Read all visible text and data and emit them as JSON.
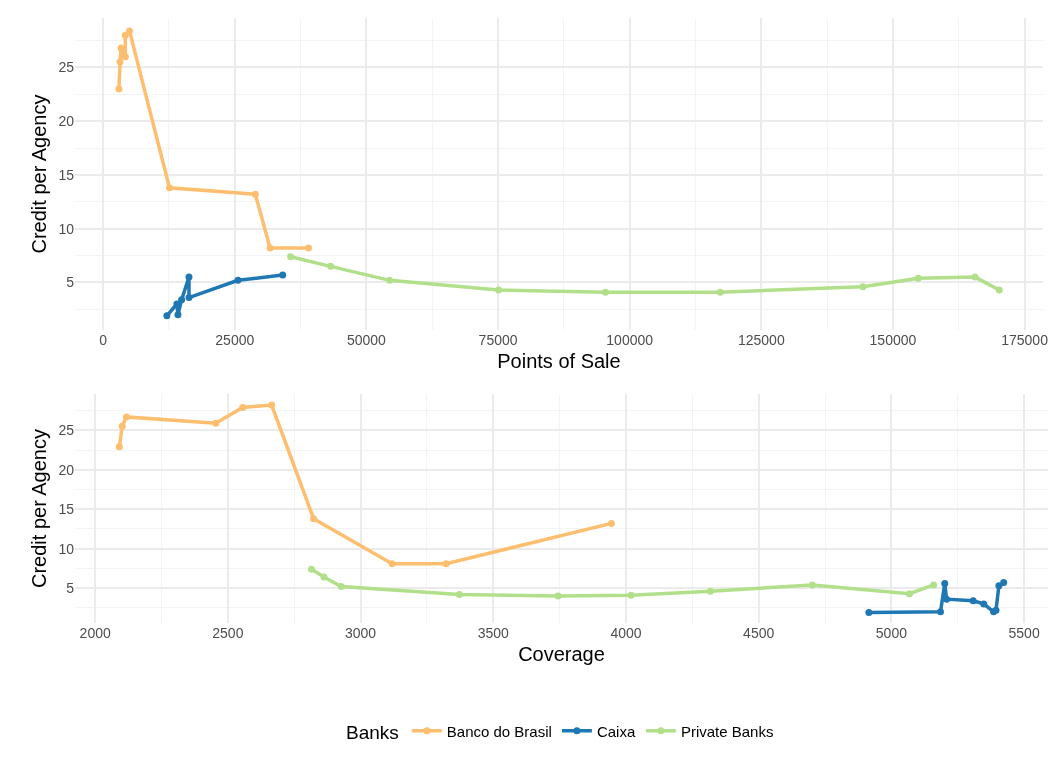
{
  "chart_data": [
    {
      "type": "line",
      "xlabel": "Points of Sale",
      "ylabel": "Credit per Agency",
      "xlim": [
        -5350,
        178500
      ],
      "ylim": [
        0.58,
        29.6
      ],
      "xticks": [
        0,
        25000,
        50000,
        75000,
        100000,
        125000,
        150000,
        175000
      ],
      "yticks": [
        5,
        10,
        15,
        20,
        25
      ],
      "grid": true,
      "legend": false,
      "marker": "circle",
      "line_style": "solid",
      "series": [
        {
          "color": "#fdbf6f",
          "x": [
            3000,
            3200,
            3400,
            4200,
            4200,
            5000,
            12600,
            28900,
            31700,
            39000
          ],
          "values": [
            23.0,
            25.5,
            26.8,
            26.0,
            28.0,
            28.4,
            13.8,
            13.2,
            8.2,
            8.2
          ]
        },
        {
          "color": "#1f78b4",
          "x": [
            12100,
            14000,
            14200,
            14900,
            16300,
            16300,
            25600,
            34100
          ],
          "values": [
            1.9,
            3.0,
            2.0,
            3.4,
            5.5,
            3.6,
            5.2,
            5.7
          ]
        },
        {
          "color": "#b2df8a",
          "x": [
            35600,
            43200,
            54400,
            75100,
            95400,
            117200,
            144300,
            154800,
            165600,
            170200
          ],
          "values": [
            7.4,
            6.5,
            5.2,
            4.3,
            4.1,
            4.1,
            4.6,
            5.4,
            5.5,
            4.3
          ]
        }
      ]
    },
    {
      "type": "line",
      "xlabel": "Coverage",
      "ylabel": "Credit per Agency",
      "legend_title": "Banks",
      "xlim": [
        1924,
        5590
      ],
      "ylim": [
        0.58,
        29.6
      ],
      "xticks": [
        2000,
        2500,
        3000,
        3500,
        4000,
        4500,
        5000,
        5500
      ],
      "yticks": [
        5,
        10,
        15,
        20,
        25
      ],
      "grid": true,
      "legend": "bottom",
      "marker": "circle",
      "line_style": "solid",
      "series": [
        {
          "name": "Banco do Brasil",
          "color": "#fdbf6f",
          "x": [
            2091,
            2102,
            2118,
            2454,
            2556,
            2665,
            2823,
            3119,
            3322,
            3945
          ],
          "values": [
            22.9,
            25.5,
            26.7,
            25.9,
            27.9,
            28.2,
            13.8,
            8.1,
            8.1,
            13.2
          ]
        },
        {
          "name": "Caixa",
          "color": "#1f78b4",
          "x": [
            4915,
            5185,
            5201,
            5208,
            5308,
            5348,
            5385,
            5394,
            5405,
            5423
          ],
          "values": [
            1.9,
            2.0,
            5.6,
            3.6,
            3.4,
            3.0,
            2.0,
            2.2,
            5.3,
            5.7
          ]
        },
        {
          "name": "Private Banks",
          "color": "#b2df8a",
          "x": [
            2815,
            2862,
            2927,
            3372,
            3744,
            4019,
            4318,
            4702,
            5068,
            5159
          ],
          "values": [
            7.4,
            6.4,
            5.2,
            4.2,
            4.0,
            4.1,
            4.6,
            5.4,
            4.3,
            5.4
          ]
        }
      ]
    }
  ]
}
